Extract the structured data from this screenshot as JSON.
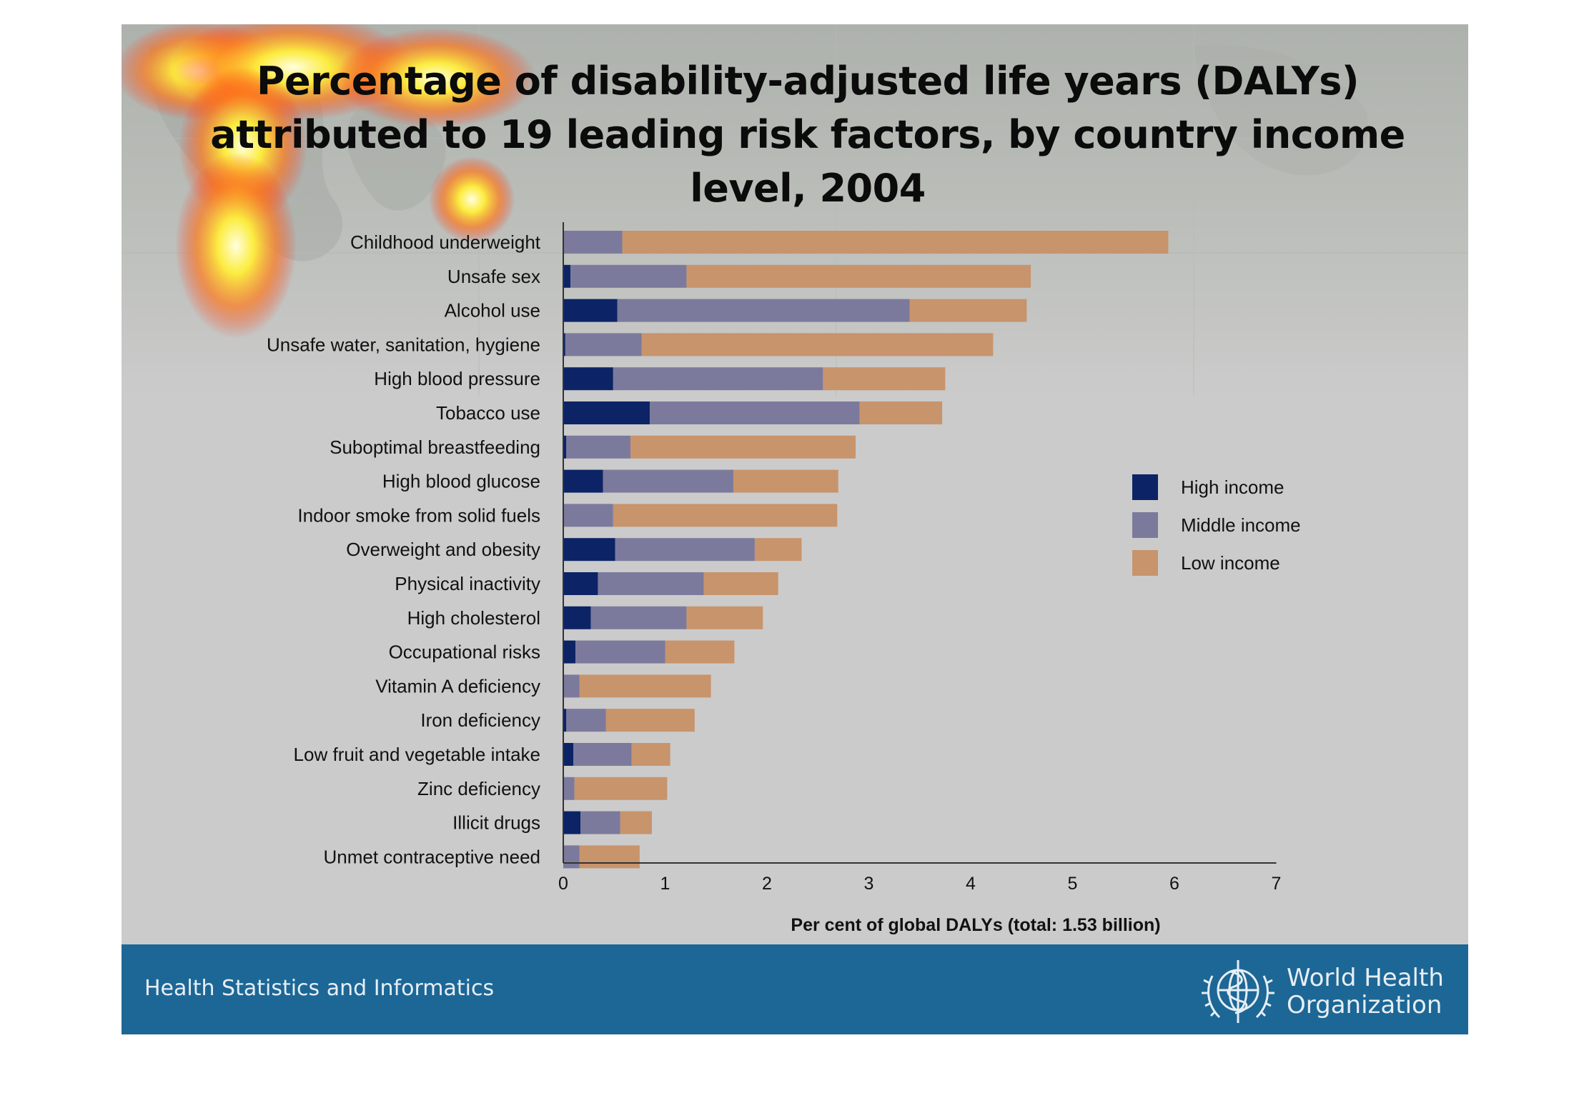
{
  "title": "Percentage of disability-adjusted life years (DALYs) attributed to 19 leading risk factors, by country income level, 2004",
  "footer": {
    "left_text": "Health Statistics and Informatics",
    "org_name": "World Health Organization",
    "org_line1": "World Health",
    "org_line2": "Organization"
  },
  "colors": {
    "high": "#0c2466",
    "middle": "#7c7a9c",
    "low": "#c8946c",
    "footer_bg": "#1c6796"
  },
  "chart_data": {
    "type": "bar",
    "orientation": "horizontal",
    "stacked": true,
    "title": "Percentage of disability-adjusted life years (DALYs) attributed to 19 leading risk factors, by country income level, 2004",
    "xlabel": "Per cent of global DALYs (total: 1.53 billion)",
    "ylabel": "",
    "xlim": [
      0,
      7
    ],
    "xticks": [
      0,
      1,
      2,
      3,
      4,
      5,
      6,
      7
    ],
    "legend_position": "right",
    "grid": false,
    "categories": [
      "Childhood underweight",
      "Unsafe sex",
      "Alcohol use",
      "Unsafe water, sanitation, hygiene",
      "High blood pressure",
      "Tobacco use",
      "Suboptimal breastfeeding",
      "High blood glucose",
      "Indoor smoke from solid fuels",
      "Overweight and obesity",
      "Physical inactivity",
      "High cholesterol",
      "Occupational risks",
      "Vitamin A deficiency",
      "Iron deficiency",
      "Low fruit and vegetable intake",
      "Zinc deficiency",
      "Illicit drugs",
      "Unmet contraceptive need"
    ],
    "series": [
      {
        "name": "High income",
        "values": [
          0.0,
          0.07,
          0.53,
          0.02,
          0.49,
          0.85,
          0.03,
          0.39,
          0.0,
          0.51,
          0.34,
          0.27,
          0.12,
          0.0,
          0.03,
          0.1,
          0.0,
          0.17,
          0.0
        ]
      },
      {
        "name": "Middle income",
        "values": [
          0.58,
          1.14,
          2.87,
          0.75,
          2.06,
          2.06,
          0.63,
          1.28,
          0.49,
          1.37,
          1.04,
          0.94,
          0.88,
          0.16,
          0.39,
          0.57,
          0.11,
          0.39,
          0.16
        ]
      },
      {
        "name": "Low income",
        "values": [
          5.36,
          3.38,
          1.15,
          3.45,
          1.2,
          0.81,
          2.21,
          1.03,
          2.2,
          0.46,
          0.73,
          0.75,
          0.68,
          1.29,
          0.87,
          0.38,
          0.91,
          0.31,
          0.59
        ]
      }
    ]
  }
}
